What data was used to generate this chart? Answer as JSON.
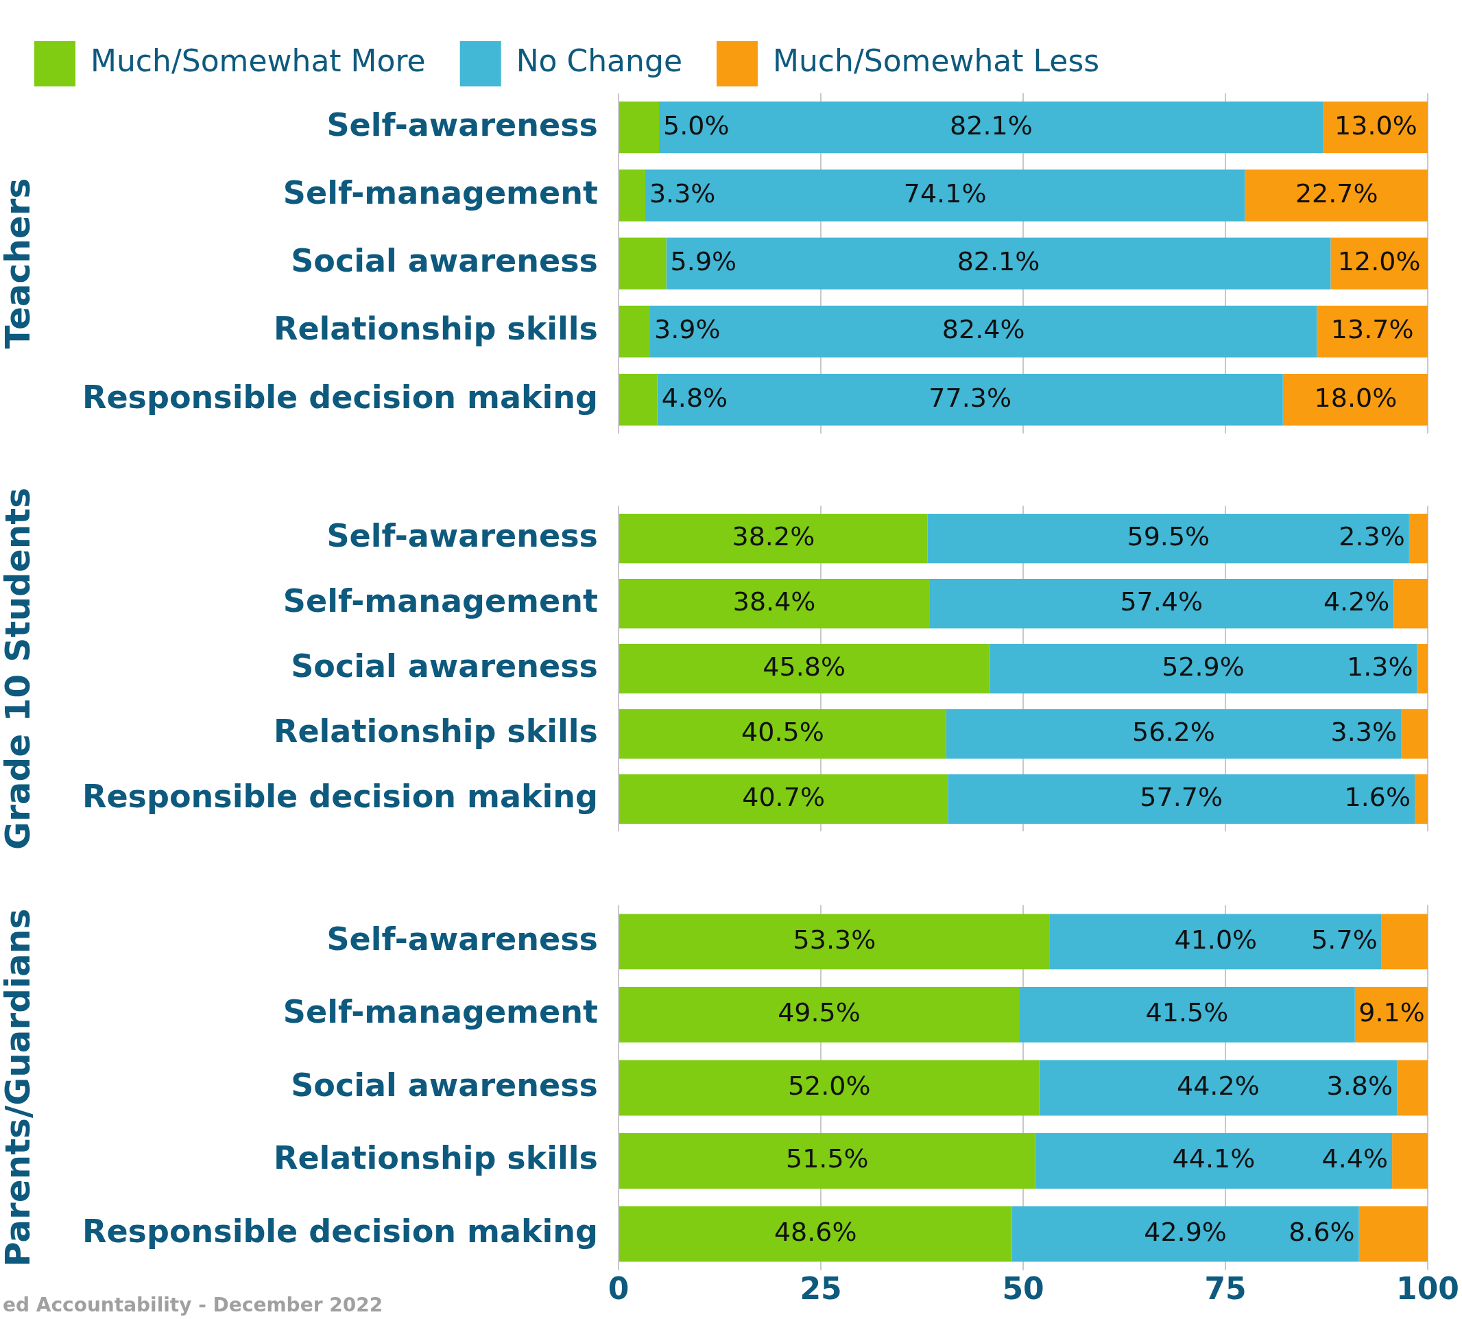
{
  "chart_data": [
    {
      "type": "bar",
      "orientation": "horizontal",
      "stacked": true,
      "ylabel": "Teachers",
      "legend": "top left",
      "grid": "x",
      "tick_labels": "y",
      "xlim": [
        0,
        100
      ],
      "xticks": [
        0,
        25,
        50,
        75,
        100
      ],
      "categories": [
        "Self-awareness",
        "Self-management",
        "Social awareness",
        "Relationship skills",
        "Responsible decision making"
      ],
      "series": [
        {
          "name": "Much/Somewhat More",
          "color": "#7fcc12",
          "values": [
            5.0,
            3.3,
            5.9,
            3.9,
            4.8
          ],
          "value_labels": [
            "5.0%",
            "3.3%",
            "5.9%",
            "3.9%",
            "4.8%"
          ]
        },
        {
          "name": "No Change",
          "color": "#42b7d6",
          "values": [
            82.1,
            74.1,
            82.1,
            82.4,
            77.3
          ],
          "value_labels": [
            "82.1%",
            "74.1%",
            "82.1%",
            "82.4%",
            "77.3%"
          ]
        },
        {
          "name": "Much/Somewhat Less",
          "color": "#fa9c0f",
          "values": [
            13.0,
            22.7,
            12.0,
            13.7,
            18.0
          ],
          "value_labels": [
            "13.0%",
            "22.7%",
            "12.0%",
            "13.7%",
            "18.0%"
          ]
        }
      ]
    },
    {
      "type": "bar",
      "orientation": "horizontal",
      "stacked": true,
      "ylabel": "Grade 10 Students",
      "grid": "x",
      "tick_labels": "y",
      "xlim": [
        0,
        100
      ],
      "xticks": [
        0,
        25,
        50,
        75,
        100
      ],
      "categories": [
        "Self-awareness",
        "Self-management",
        "Social awareness",
        "Relationship skills",
        "Responsible decision making"
      ],
      "series": [
        {
          "color": "#7fcc12",
          "values": [
            38.2,
            38.4,
            45.8,
            40.5,
            40.7
          ],
          "value_labels": [
            "38.2%",
            "38.4%",
            "45.8%",
            "40.5%",
            "40.7%"
          ]
        },
        {
          "color": "#42b7d6",
          "values": [
            59.5,
            57.4,
            52.9,
            56.2,
            57.7
          ],
          "value_labels": [
            "59.5%",
            "57.4%",
            "52.9%",
            "56.2%",
            "57.7%"
          ]
        },
        {
          "color": "#fa9c0f",
          "values": [
            2.3,
            4.2,
            1.3,
            3.3,
            1.6
          ],
          "value_labels": [
            "2.3%",
            "4.2%",
            "1.3%",
            "3.3%",
            "1.6%"
          ]
        }
      ]
    },
    {
      "type": "bar",
      "orientation": "horizontal",
      "stacked": true,
      "ylabel": "Parents/Guardians",
      "grid": "x",
      "xlim": [
        0,
        100
      ],
      "xticks": [
        0,
        25,
        50,
        75,
        100
      ],
      "annotations": [
        "ed Accountability - December 2022"
      ],
      "categories": [
        "Self-awareness",
        "Self-management",
        "Social awareness",
        "Relationship skills",
        "Responsible decision making"
      ],
      "series": [
        {
          "color": "#7fcc12",
          "values": [
            53.3,
            49.5,
            52.0,
            51.5,
            48.6
          ],
          "value_labels": [
            "53.3%",
            "49.5%",
            "52.0%",
            "51.5%",
            "48.6%"
          ]
        },
        {
          "color": "#42b7d6",
          "values": [
            41.0,
            41.5,
            44.2,
            44.1,
            42.9
          ],
          "value_labels": [
            "41.0%",
            "41.5%",
            "44.2%",
            "44.1%",
            "42.9%"
          ]
        },
        {
          "color": "#fa9c0f",
          "values": [
            5.7,
            9.1,
            3.8,
            4.4,
            8.6
          ],
          "value_labels": [
            "5.7%",
            "9.1%",
            "3.8%",
            "4.4%",
            "8.6%"
          ]
        }
      ]
    }
  ]
}
